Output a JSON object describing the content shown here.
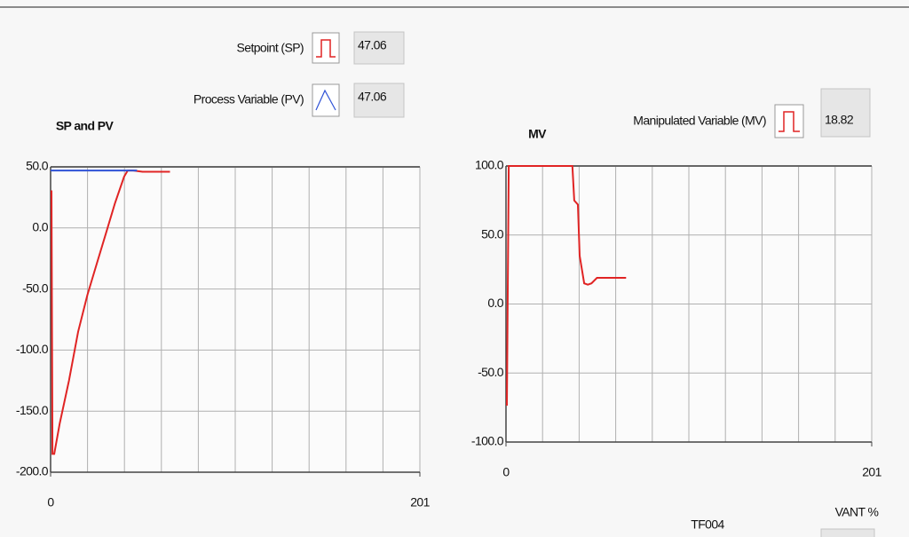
{
  "chart_data": [
    {
      "type": "line",
      "title": "SP and PV",
      "xlim": [
        0,
        201
      ],
      "xticks": [
        0,
        201
      ],
      "ylim": [
        -200,
        50
      ],
      "yticks": [
        {
          "value": 50,
          "label": "50.0"
        },
        {
          "value": 0,
          "label": "0.0"
        },
        {
          "value": -50,
          "label": "-50.0"
        },
        {
          "value": -100,
          "label": "-100.0"
        },
        {
          "value": -150,
          "label": "-150.0"
        },
        {
          "value": -200,
          "label": "-200.0"
        }
      ],
      "grid": true,
      "series": [
        {
          "name": "Setpoint (SP)",
          "readout": "47.06",
          "color": "#e02424",
          "x": [
            0,
            0.5,
            1,
            2,
            5,
            10,
            15,
            20,
            25,
            30,
            35,
            40,
            42,
            45,
            50,
            55,
            60,
            65
          ],
          "values": [
            30,
            30,
            -185,
            -185,
            -160,
            -125,
            -85,
            -55,
            -30,
            -5,
            20,
            42,
            47,
            47,
            46,
            46,
            46,
            46
          ]
        },
        {
          "name": "Process Variable (PV)",
          "readout": "47.06",
          "color": "#2f52d6",
          "x": [
            0,
            47
          ],
          "values": [
            47,
            47
          ]
        }
      ]
    },
    {
      "type": "line",
      "title": "MV",
      "xlim": [
        0,
        201
      ],
      "xticks": [
        0,
        201
      ],
      "ylim": [
        -100,
        100
      ],
      "yticks": [
        {
          "value": 100,
          "label": "100.0"
        },
        {
          "value": 50,
          "label": "50.0"
        },
        {
          "value": 0,
          "label": "0.0"
        },
        {
          "value": -50,
          "label": "-50.0"
        },
        {
          "value": -100,
          "label": "-100.0"
        }
      ],
      "grid": true,
      "series": [
        {
          "name": "Manipulated Variable (MV)",
          "readout": "18.82",
          "color": "#e02424",
          "x": [
            0,
            0.5,
            1.5,
            36.5,
            37.5,
            39.5,
            40.5,
            43,
            45,
            47,
            50,
            66
          ],
          "values": [
            -73,
            -73,
            100,
            100,
            75,
            72,
            35,
            15,
            14,
            15,
            19,
            19
          ]
        }
      ]
    }
  ],
  "labels": [
    "TF004",
    "VANT %"
  ]
}
